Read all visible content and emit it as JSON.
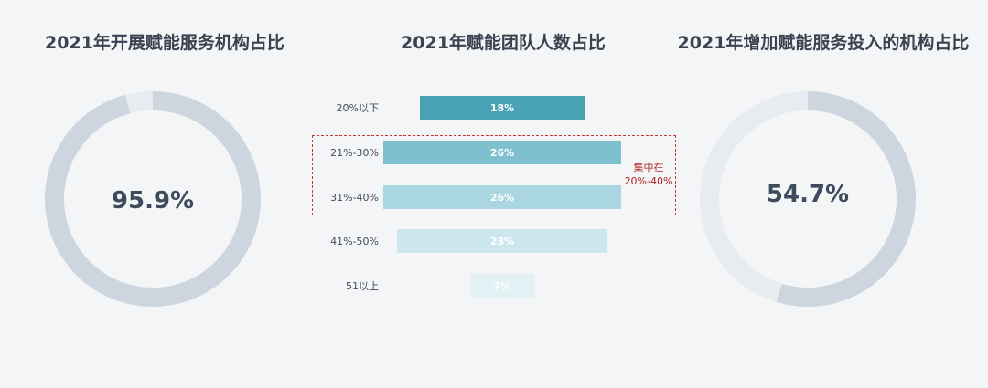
{
  "chart_data": [
    {
      "type": "pie",
      "title": "2021年开展赋能服务机构占比",
      "values": [
        95.9,
        4.1
      ],
      "center_label": "95.9%",
      "colors": [
        "#cdd5df",
        "#e8ebef"
      ]
    },
    {
      "type": "bar",
      "orientation": "horizontal",
      "layout": "funnel",
      "title": "2021年赋能团队人数占比",
      "categories": [
        "20%以下",
        "21%-30%",
        "31%-40%",
        "41%-50%",
        "51以上"
      ],
      "values": [
        18,
        26,
        26,
        23,
        7
      ],
      "data_labels": [
        "18%",
        "26%",
        "26%",
        "23%",
        "7%"
      ],
      "colors": [
        "#4aa3b5",
        "#7fc0cf",
        "#a9d6e0",
        "#cce7ee",
        "#e3f1f4"
      ],
      "annotation": {
        "line1": "集中在",
        "line2": "20%-40%",
        "color": "#c0392b"
      }
    },
    {
      "type": "pie",
      "title": "2021年增加赋能服务投入的机构占比",
      "values": [
        54.7,
        45.3
      ],
      "center_label": "54.7%",
      "colors": [
        "#cdd5df",
        "#e8ebef"
      ]
    }
  ]
}
